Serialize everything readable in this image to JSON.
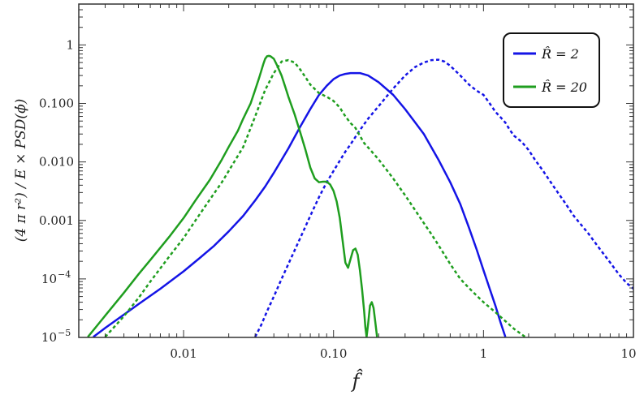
{
  "chart_data": {
    "type": "line",
    "title": "",
    "xlabel": "f̂",
    "ylabel": "(4 π r²) / E × PSD(ϕ̇)",
    "xscale": "log",
    "yscale": "log",
    "xlim": [
      0.002,
      10
    ],
    "ylim": [
      1e-05,
      5
    ],
    "x_ticks": [
      {
        "value": 0.01,
        "label": "0.01"
      },
      {
        "value": 0.1,
        "label": "0.10"
      },
      {
        "value": 1,
        "label": "1"
      },
      {
        "value": 10,
        "label": "10"
      }
    ],
    "y_ticks": [
      {
        "value": 1e-05,
        "base": "10",
        "exp": "−5"
      },
      {
        "value": 0.0001,
        "base": "10",
        "exp": "−4"
      },
      {
        "value": 0.001,
        "label": "0.001"
      },
      {
        "value": 0.01,
        "label": "0.010"
      },
      {
        "value": 0.1,
        "label": "0.100"
      },
      {
        "value": 1,
        "label": "1"
      }
    ],
    "grid": false,
    "legend_position": "top-right",
    "legend": [
      {
        "label": "R̂ = 2",
        "color": "#1414e6"
      },
      {
        "label": "R̂ = 20",
        "color": "#1f9e1f"
      }
    ],
    "series": [
      {
        "legend_index": 0,
        "color": "#1414e6",
        "dash": "solid",
        "points": [
          [
            0.0025,
            1.02e-05
          ],
          [
            0.003,
            1.45e-05
          ],
          [
            0.004,
            2.45e-05
          ],
          [
            0.005,
            3.7e-05
          ],
          [
            0.007,
            6.8e-05
          ],
          [
            0.01,
            0.000135
          ],
          [
            0.013,
            0.000235
          ],
          [
            0.016,
            0.00037
          ],
          [
            0.02,
            0.00065
          ],
          [
            0.025,
            0.0012
          ],
          [
            0.03,
            0.0022
          ],
          [
            0.035,
            0.0038
          ],
          [
            0.04,
            0.0065
          ],
          [
            0.05,
            0.017
          ],
          [
            0.06,
            0.04
          ],
          [
            0.07,
            0.08
          ],
          [
            0.08,
            0.14
          ],
          [
            0.09,
            0.2
          ],
          [
            0.1,
            0.26
          ],
          [
            0.11,
            0.3
          ],
          [
            0.12,
            0.32
          ],
          [
            0.13,
            0.33
          ],
          [
            0.15,
            0.33
          ],
          [
            0.17,
            0.3
          ],
          [
            0.2,
            0.23
          ],
          [
            0.25,
            0.14
          ],
          [
            0.3,
            0.08
          ],
          [
            0.4,
            0.03
          ],
          [
            0.5,
            0.011
          ],
          [
            0.6,
            0.0045
          ],
          [
            0.7,
            0.0019
          ],
          [
            0.8,
            0.00075
          ],
          [
            0.9,
            0.00032
          ],
          [
            1.0,
            0.00014
          ],
          [
            1.1,
            6.8e-05
          ],
          [
            1.2,
            3.5e-05
          ],
          [
            1.3,
            1.8e-05
          ],
          [
            1.4,
            1.02e-05
          ]
        ]
      },
      {
        "legend_index": 0,
        "color": "#1414e6",
        "dash": "dashed",
        "points": [
          [
            0.03,
            1.02e-05
          ],
          [
            0.033,
            1.65e-05
          ],
          [
            0.036,
            2.8e-05
          ],
          [
            0.04,
            5e-05
          ],
          [
            0.045,
            0.0001
          ],
          [
            0.05,
            0.00018
          ],
          [
            0.06,
            0.0005
          ],
          [
            0.07,
            0.0012
          ],
          [
            0.08,
            0.0025
          ],
          [
            0.09,
            0.0045
          ],
          [
            0.1,
            0.007
          ],
          [
            0.11,
            0.0105
          ],
          [
            0.12,
            0.015
          ],
          [
            0.13,
            0.02
          ],
          [
            0.15,
            0.035
          ],
          [
            0.17,
            0.055
          ],
          [
            0.2,
            0.09
          ],
          [
            0.25,
            0.18
          ],
          [
            0.3,
            0.3
          ],
          [
            0.35,
            0.42
          ],
          [
            0.4,
            0.5
          ],
          [
            0.45,
            0.55
          ],
          [
            0.5,
            0.56
          ],
          [
            0.55,
            0.52
          ],
          [
            0.6,
            0.44
          ],
          [
            0.7,
            0.3
          ],
          [
            0.8,
            0.21
          ],
          [
            0.9,
            0.165
          ],
          [
            1.0,
            0.14
          ],
          [
            1.1,
            0.1
          ],
          [
            1.2,
            0.072
          ],
          [
            1.3,
            0.058
          ],
          [
            1.4,
            0.047
          ],
          [
            1.5,
            0.035
          ],
          [
            1.6,
            0.028
          ],
          [
            1.8,
            0.022
          ],
          [
            2.0,
            0.016
          ],
          [
            2.2,
            0.011
          ],
          [
            2.5,
            0.007
          ],
          [
            3.0,
            0.0035
          ],
          [
            3.5,
            0.002
          ],
          [
            4.0,
            0.0012
          ],
          [
            5.0,
            0.0006
          ],
          [
            6.0,
            0.00032
          ],
          [
            7.0,
            0.00019
          ],
          [
            8.0,
            0.00012
          ],
          [
            9.0,
            8.5e-05
          ],
          [
            10.0,
            6.8e-05
          ]
        ]
      },
      {
        "legend_index": 1,
        "color": "#1f9e1f",
        "dash": "solid",
        "points": [
          [
            0.0023,
            1.02e-05
          ],
          [
            0.003,
            2.35e-05
          ],
          [
            0.004,
            5.8e-05
          ],
          [
            0.005,
            0.00012
          ],
          [
            0.006,
            0.00021
          ],
          [
            0.008,
            0.00052
          ],
          [
            0.01,
            0.0011
          ],
          [
            0.012,
            0.0022
          ],
          [
            0.015,
            0.005
          ],
          [
            0.018,
            0.011
          ],
          [
            0.02,
            0.018
          ],
          [
            0.023,
            0.034
          ],
          [
            0.025,
            0.055
          ],
          [
            0.028,
            0.1
          ],
          [
            0.03,
            0.17
          ],
          [
            0.032,
            0.28
          ],
          [
            0.034,
            0.47
          ],
          [
            0.035,
            0.58
          ],
          [
            0.036,
            0.64
          ],
          [
            0.037,
            0.65
          ],
          [
            0.038,
            0.64
          ],
          [
            0.04,
            0.58
          ],
          [
            0.042,
            0.45
          ],
          [
            0.045,
            0.3
          ],
          [
            0.048,
            0.18
          ],
          [
            0.05,
            0.13
          ],
          [
            0.055,
            0.065
          ],
          [
            0.06,
            0.032
          ],
          [
            0.065,
            0.016
          ],
          [
            0.07,
            0.008
          ],
          [
            0.075,
            0.0052
          ],
          [
            0.08,
            0.0045
          ],
          [
            0.085,
            0.0046
          ],
          [
            0.09,
            0.0046
          ],
          [
            0.095,
            0.0041
          ],
          [
            0.1,
            0.0032
          ],
          [
            0.105,
            0.0021
          ],
          [
            0.11,
            0.0011
          ],
          [
            0.115,
            0.00045
          ],
          [
            0.12,
            0.00019
          ],
          [
            0.125,
            0.000155
          ],
          [
            0.13,
            0.00022
          ],
          [
            0.135,
            0.00031
          ],
          [
            0.14,
            0.00033
          ],
          [
            0.145,
            0.00026
          ],
          [
            0.15,
            0.00014
          ],
          [
            0.155,
            6.5e-05
          ],
          [
            0.16,
            2.8e-05
          ],
          [
            0.163,
            1.5e-05
          ],
          [
            0.166,
            1.02e-05
          ],
          [
            0.17,
            1.7e-05
          ],
          [
            0.175,
            3.5e-05
          ],
          [
            0.18,
            4e-05
          ],
          [
            0.185,
            3.2e-05
          ],
          [
            0.19,
            1.8e-05
          ],
          [
            0.195,
            1.02e-05
          ]
        ]
      },
      {
        "legend_index": 1,
        "color": "#1f9e1f",
        "dash": "dashed",
        "points": [
          [
            0.003,
            1.02e-05
          ],
          [
            0.004,
            2.3e-05
          ],
          [
            0.005,
            4.7e-05
          ],
          [
            0.006,
            9e-05
          ],
          [
            0.008,
            0.00024
          ],
          [
            0.01,
            0.0005
          ],
          [
            0.012,
            0.001
          ],
          [
            0.015,
            0.0023
          ],
          [
            0.018,
            0.0045
          ],
          [
            0.02,
            0.007
          ],
          [
            0.025,
            0.018
          ],
          [
            0.03,
            0.06
          ],
          [
            0.035,
            0.17
          ],
          [
            0.04,
            0.33
          ],
          [
            0.045,
            0.52
          ],
          [
            0.05,
            0.55
          ],
          [
            0.055,
            0.5
          ],
          [
            0.06,
            0.38
          ],
          [
            0.065,
            0.28
          ],
          [
            0.07,
            0.21
          ],
          [
            0.08,
            0.15
          ],
          [
            0.09,
            0.13
          ],
          [
            0.1,
            0.11
          ],
          [
            0.11,
            0.085
          ],
          [
            0.12,
            0.06
          ],
          [
            0.13,
            0.046
          ],
          [
            0.14,
            0.038
          ],
          [
            0.15,
            0.028
          ],
          [
            0.16,
            0.021
          ],
          [
            0.18,
            0.015
          ],
          [
            0.2,
            0.011
          ],
          [
            0.22,
            0.008
          ],
          [
            0.25,
            0.0052
          ],
          [
            0.3,
            0.0027
          ],
          [
            0.35,
            0.0015
          ],
          [
            0.4,
            0.0009
          ],
          [
            0.45,
            0.00058
          ],
          [
            0.5,
            0.00038
          ],
          [
            0.6,
            0.00018
          ],
          [
            0.7,
            0.0001
          ],
          [
            0.8,
            7e-05
          ],
          [
            0.9,
            5.2e-05
          ],
          [
            1.0,
            4e-05
          ],
          [
            1.2,
            2.7e-05
          ],
          [
            1.4,
            1.9e-05
          ],
          [
            1.6,
            1.4e-05
          ],
          [
            1.9,
            1.02e-05
          ]
        ]
      }
    ]
  }
}
